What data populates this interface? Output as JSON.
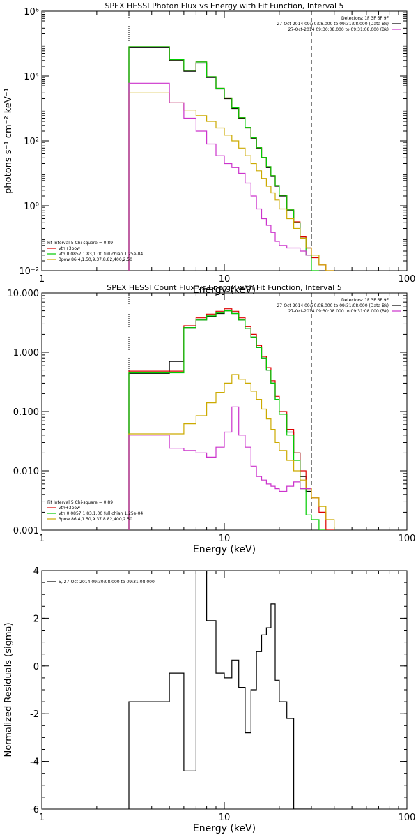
{
  "chart_data": [
    {
      "type": "line",
      "title": "SPEX HESSI Photon Flux vs Energy with Fit Function, Interval 5",
      "xlabel": "Energy (keV)",
      "ylabel": "photons s⁻¹ cm⁻² keV⁻¹",
      "x_scale": "log",
      "y_scale": "log",
      "xlim": [
        1,
        100
      ],
      "ylim": [
        0.01,
        1000000
      ],
      "x_ticks": [
        {
          "v": 1,
          "label": "1"
        },
        {
          "v": 10,
          "label": "10"
        },
        {
          "v": 100,
          "label": "100"
        }
      ],
      "y_ticks": [
        {
          "v": 0.01,
          "label": "10⁻²"
        },
        {
          "v": 1,
          "label": "10⁰"
        },
        {
          "v": 100,
          "label": "10²"
        },
        {
          "v": 10000,
          "label": "10⁴"
        },
        {
          "v": 1000000,
          "label": "10⁶"
        }
      ],
      "vlines": [
        {
          "x": 3,
          "style": "dotted"
        },
        {
          "x": 30,
          "style": "dashed"
        }
      ],
      "legend_top": {
        "position": "top-right",
        "lines": [
          {
            "text": "Detectors: 1F 3F 6F 9F",
            "color": ""
          },
          {
            "text": "27-Oct-2014 09:30:08.000 to 09:31:08.000 (Data-Bk)",
            "color": "#000000"
          },
          {
            "text": "27-Oct-2014 09:30:08.000 to 09:31:08.000 (Bk)",
            "color": "#cc33cc"
          }
        ]
      },
      "legend_bottom": {
        "position": "bottom-left",
        "lines": [
          {
            "text": "Fit Interval 5   Chi-square = 0.89",
            "color": ""
          },
          {
            "text": "vth+3pow",
            "color": "#dd0000"
          },
          {
            "text": "vth 0.0857,1.83,1.00  full chian 1.25e-04",
            "color": "#00cc00"
          },
          {
            "text": "3pow 86.4,1.50,9.37,8.82,400,2.50",
            "color": "#ccaa00"
          }
        ]
      },
      "edges": [
        3,
        4,
        5,
        6,
        7,
        8,
        9,
        10,
        11,
        12,
        13,
        14,
        15,
        16,
        17,
        18,
        19,
        20,
        22,
        24,
        26,
        28,
        30,
        33,
        36,
        40
      ],
      "series": [
        {
          "name": "Data-Bk",
          "color": "#000000",
          "values": [
            75000,
            75000,
            30000,
            14000,
            25000,
            9000,
            4000,
            2000,
            1000,
            500,
            250,
            120,
            60,
            30,
            15,
            8,
            4,
            2,
            0.7,
            0.3,
            0.1,
            0.05,
            null,
            null,
            null
          ]
        },
        {
          "name": "vth+3pow",
          "color": "#dd0000",
          "values": [
            80000,
            80000,
            32000,
            15000,
            27000,
            9500,
            4200,
            2100,
            1050,
            520,
            260,
            125,
            62,
            31,
            16,
            8.5,
            4.2,
            2.1,
            0.75,
            0.32,
            0.11,
            0.05,
            0.025,
            0.015,
            0.01
          ]
        },
        {
          "name": "vth",
          "color": "#00cc00",
          "values": [
            80000,
            80000,
            32000,
            15000,
            27000,
            9500,
            4200,
            2100,
            1050,
            520,
            260,
            125,
            62,
            31,
            16,
            8.5,
            4.2,
            2.1,
            0.75,
            0.3,
            0.1,
            0.03,
            0.01,
            null,
            null
          ]
        },
        {
          "name": "3pow",
          "color": "#ccaa00",
          "values": [
            3000,
            3000,
            1500,
            900,
            600,
            400,
            250,
            150,
            100,
            60,
            35,
            20,
            12,
            7,
            4,
            2.5,
            1.5,
            0.8,
            0.4,
            0.2,
            0.1,
            0.05,
            0.03,
            0.015,
            0.01
          ]
        },
        {
          "name": "Bk",
          "color": "#cc33cc",
          "values": [
            6000,
            6000,
            1500,
            500,
            200,
            80,
            35,
            20,
            15,
            10,
            5,
            2,
            0.8,
            0.4,
            0.25,
            0.15,
            0.08,
            0.06,
            0.05,
            0.05,
            0.04,
            0.03,
            null,
            null,
            null
          ]
        }
      ]
    },
    {
      "type": "line",
      "title": "SPEX HESSI Count Flux vs Energy with Fit Function, Interval 5",
      "xlabel": "Energy (keV)",
      "ylabel": "",
      "x_scale": "log",
      "y_scale": "log",
      "xlim": [
        1,
        100
      ],
      "ylim": [
        0.001,
        10
      ],
      "x_ticks": [
        {
          "v": 1,
          "label": "1"
        },
        {
          "v": 10,
          "label": "10"
        },
        {
          "v": 100,
          "label": "100"
        }
      ],
      "y_ticks": [
        {
          "v": 0.001,
          "label": "0.001"
        },
        {
          "v": 0.01,
          "label": "0.010"
        },
        {
          "v": 0.1,
          "label": "0.100"
        },
        {
          "v": 1,
          "label": "1.000"
        },
        {
          "v": 10,
          "label": "10.000"
        }
      ],
      "vlines": [
        {
          "x": 3,
          "style": "dotted"
        },
        {
          "x": 30,
          "style": "dashed"
        }
      ],
      "legend_top": {
        "position": "top-right",
        "lines": [
          {
            "text": "Detectors: 1F 3F 6F 9F",
            "color": ""
          },
          {
            "text": "27-Oct-2014 09:30:08.000 to 09:31:08.000 (Data-Bk)",
            "color": "#000000"
          },
          {
            "text": "27-Oct-2014 09:30:08.000 to 09:31:08.000 (Bk)",
            "color": "#cc33cc"
          }
        ]
      },
      "legend_bottom": {
        "position": "bottom-left",
        "lines": [
          {
            "text": "Fit Interval 5   Chi-square = 0.89",
            "color": ""
          },
          {
            "text": "vth+3pow",
            "color": "#dd0000"
          },
          {
            "text": "vth 0.0857,1.83,1.00  full chian 1.25e-04",
            "color": "#00cc00"
          },
          {
            "text": "3pow 86.4,1.50,9.37,8.82,400,2.50",
            "color": "#ccaa00"
          }
        ]
      },
      "edges": [
        3,
        4,
        5,
        6,
        7,
        8,
        9,
        10,
        11,
        12,
        13,
        14,
        15,
        16,
        17,
        18,
        19,
        20,
        22,
        24,
        26,
        28,
        30,
        33,
        36,
        40
      ],
      "series": [
        {
          "name": "Data-Bk",
          "color": "#000000",
          "values": [
            0.44,
            0.44,
            0.7,
            2.6,
            3.5,
            4.0,
            4.5,
            5.0,
            4.5,
            3.5,
            2.5,
            1.8,
            1.2,
            0.8,
            0.5,
            0.3,
            0.16,
            0.09,
            0.045,
            0.02,
            0.008,
            0.0045,
            null,
            null,
            null
          ]
        },
        {
          "name": "vth+3pow",
          "color": "#dd0000",
          "values": [
            0.48,
            0.48,
            0.48,
            2.8,
            3.8,
            4.4,
            4.9,
            5.4,
            4.9,
            3.8,
            2.7,
            2.0,
            1.3,
            0.85,
            0.55,
            0.33,
            0.18,
            0.1,
            0.05,
            0.02,
            0.01,
            0.005,
            0.0035,
            0.002,
            0.001
          ]
        },
        {
          "name": "vth",
          "color": "#00cc00",
          "values": [
            0.45,
            0.45,
            0.45,
            2.6,
            3.5,
            4.1,
            4.6,
            5.0,
            4.5,
            3.5,
            2.5,
            1.8,
            1.2,
            0.8,
            0.5,
            0.3,
            0.16,
            0.09,
            0.04,
            0.015,
            0.005,
            0.0018,
            0.0015,
            0.001,
            null
          ]
        },
        {
          "name": "3pow",
          "color": "#ccaa00",
          "values": [
            0.042,
            0.042,
            0.042,
            0.062,
            0.085,
            0.14,
            0.21,
            0.3,
            0.42,
            0.35,
            0.3,
            0.22,
            0.16,
            0.11,
            0.075,
            0.05,
            0.03,
            0.022,
            0.015,
            0.01,
            0.007,
            0.005,
            0.0035,
            0.0025,
            0.0015
          ]
        },
        {
          "name": "Bk",
          "color": "#cc33cc",
          "values": [
            0.04,
            0.04,
            0.024,
            0.022,
            0.02,
            0.017,
            0.025,
            0.045,
            0.12,
            0.04,
            0.025,
            0.012,
            0.008,
            0.007,
            0.006,
            0.0055,
            0.005,
            0.0045,
            0.0055,
            0.0065,
            0.005,
            0.005,
            null,
            null,
            null
          ]
        }
      ]
    },
    {
      "type": "line",
      "title": "",
      "xlabel": "Energy (keV)",
      "ylabel": "Normalized Residuals (sigma)",
      "x_scale": "log",
      "y_scale": "linear",
      "xlim": [
        1,
        100
      ],
      "ylim": [
        -6,
        4
      ],
      "x_ticks": [
        {
          "v": 1,
          "label": "1"
        },
        {
          "v": 10,
          "label": "10"
        },
        {
          "v": 100,
          "label": "100"
        }
      ],
      "y_ticks": [
        {
          "v": -6,
          "label": "-6"
        },
        {
          "v": -4,
          "label": "-4"
        },
        {
          "v": -2,
          "label": "-2"
        },
        {
          "v": 0,
          "label": "0"
        },
        {
          "v": 2,
          "label": "2"
        },
        {
          "v": 4,
          "label": "4"
        }
      ],
      "vlines": [],
      "legend_top": {
        "position": "top-left",
        "lines": [
          {
            "text": "5, 27-Oct-2014 09:30:08.000 to 09:31:08.000",
            "color": "#000000"
          }
        ]
      },
      "legend_bottom": {
        "position": "",
        "lines": []
      },
      "edges": [
        3,
        4,
        5,
        6,
        7,
        8,
        9,
        10,
        11,
        12,
        13,
        14,
        15,
        16,
        17,
        18,
        19,
        20,
        22,
        24,
        26,
        28,
        30
      ],
      "series": [
        {
          "name": "5, 27-Oct-2014 09:30:08.000 to 09:31:08.000",
          "color": "#000000",
          "values": [
            -1.5,
            -1.5,
            -0.3,
            -4.4,
            4.0,
            1.9,
            -0.3,
            -0.5,
            0.25,
            -0.9,
            -2.8,
            -1.0,
            0.6,
            1.3,
            1.6,
            2.6,
            -0.6,
            -1.5,
            -2.2,
            -6.0,
            -6.0,
            -6.0
          ]
        }
      ]
    }
  ]
}
